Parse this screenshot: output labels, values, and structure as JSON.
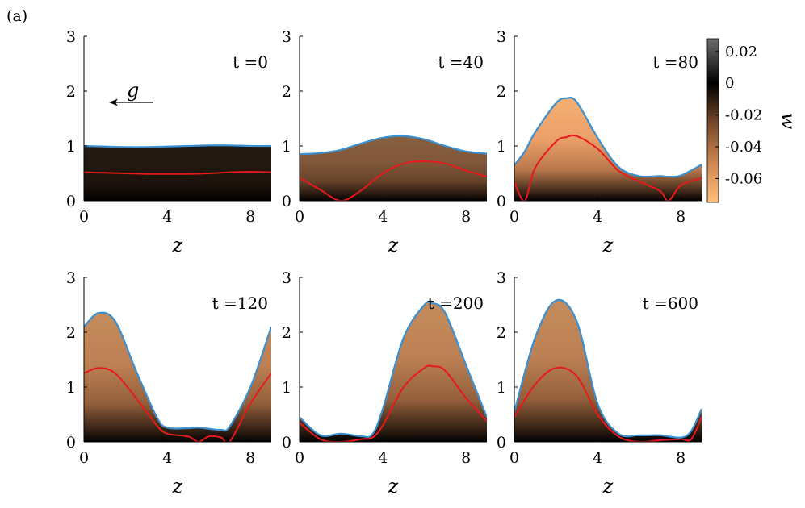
{
  "panel_label": "(a)",
  "gravity_label": "g",
  "colorbar": {
    "label": "w",
    "ticks": [
      0.02,
      0,
      -0.02,
      -0.04,
      -0.06
    ],
    "tick_labels": [
      "0.02",
      "0",
      "-0.02",
      "-0.04",
      "-0.06"
    ],
    "range": [
      -0.075,
      0.028
    ],
    "colors": {
      "positive": "#6e6e6e",
      "zero": "#000000",
      "negative": "#ffc07a"
    }
  },
  "colors": {
    "interface": "#3a8fd0",
    "inner_line": "#e8191c"
  },
  "chart_data": [
    {
      "type": "area",
      "time_label": "t =0",
      "xlabel": "z",
      "ylabel": "",
      "xlim": [
        0,
        9
      ],
      "ylim": [
        0,
        3
      ],
      "xticks": [
        0,
        4,
        8
      ],
      "yticks": [
        0,
        1,
        2,
        3
      ],
      "x": [
        0,
        1,
        2,
        3,
        4,
        5,
        6,
        7,
        8,
        9
      ],
      "series": [
        {
          "values": [
            1.0,
            0.99,
            0.98,
            0.98,
            0.99,
            1.0,
            1.01,
            1.01,
            1.0,
            1.0
          ]
        },
        {
          "values": [
            0.52,
            0.51,
            0.5,
            0.49,
            0.49,
            0.49,
            0.5,
            0.52,
            0.53,
            0.52
          ]
        }
      ],
      "fill_intensity": 0.15
    },
    {
      "type": "area",
      "time_label": "t =40",
      "xlabel": "z",
      "ylabel": "",
      "xlim": [
        0,
        9
      ],
      "ylim": [
        0,
        3
      ],
      "xticks": [
        0,
        4,
        8
      ],
      "yticks": [
        0,
        1,
        2,
        3
      ],
      "x": [
        0,
        1,
        2,
        3,
        4,
        5,
        6,
        7,
        8,
        9
      ],
      "series": [
        {
          "values": [
            0.85,
            0.87,
            0.93,
            1.05,
            1.15,
            1.18,
            1.12,
            1.0,
            0.9,
            0.86
          ]
        },
        {
          "values": [
            0.42,
            0.2,
            0.0,
            0.2,
            0.5,
            0.68,
            0.72,
            0.68,
            0.55,
            0.44
          ]
        }
      ],
      "fill_intensity": 0.55
    },
    {
      "type": "area",
      "time_label": "t =80",
      "xlabel": "z",
      "ylabel": "",
      "xlim": [
        0,
        9
      ],
      "ylim": [
        0,
        3
      ],
      "xticks": [
        0,
        4,
        8
      ],
      "yticks": [
        0,
        1,
        2,
        3
      ],
      "x": [
        0,
        0.5,
        1,
        2,
        2.5,
        3,
        4,
        5,
        6,
        7,
        7.4,
        8,
        9
      ],
      "series": [
        {
          "values": [
            0.65,
            0.9,
            1.25,
            1.78,
            1.87,
            1.8,
            1.15,
            0.62,
            0.45,
            0.45,
            0.44,
            0.46,
            0.66
          ]
        },
        {
          "values": [
            0.35,
            0.0,
            0.6,
            1.08,
            1.16,
            1.18,
            0.95,
            0.55,
            0.35,
            0.18,
            0.0,
            0.28,
            0.42
          ]
        }
      ],
      "fill_intensity": 1.0
    },
    {
      "type": "area",
      "time_label": "t =120",
      "xlabel": "z",
      "ylabel": "",
      "xlim": [
        0,
        9
      ],
      "ylim": [
        0,
        3
      ],
      "xticks": [
        0,
        4,
        8
      ],
      "yticks": [
        0,
        1,
        2,
        3
      ],
      "x": [
        0,
        0.7,
        1.5,
        2.5,
        3.5,
        4,
        5,
        5.5,
        6,
        6.6,
        7,
        8,
        9
      ],
      "series": [
        {
          "values": [
            2.1,
            2.35,
            2.2,
            1.3,
            0.45,
            0.26,
            0.25,
            0.26,
            0.24,
            0.22,
            0.28,
            1.0,
            2.1
          ]
        },
        {
          "values": [
            1.25,
            1.35,
            1.25,
            0.8,
            0.3,
            0.15,
            0.1,
            0.0,
            0.1,
            0.08,
            0.0,
            0.7,
            1.25
          ]
        }
      ],
      "fill_intensity": 0.8
    },
    {
      "type": "area",
      "time_label": "t =200",
      "xlabel": "z",
      "ylabel": "",
      "xlim": [
        0,
        9
      ],
      "ylim": [
        0,
        3
      ],
      "xticks": [
        0,
        4,
        8
      ],
      "yticks": [
        0,
        1,
        2,
        3
      ],
      "x": [
        0,
        1,
        2,
        3,
        3.5,
        4,
        5,
        6,
        6.4,
        7,
        8,
        9
      ],
      "series": [
        {
          "values": [
            0.45,
            0.12,
            0.15,
            0.1,
            0.14,
            0.6,
            1.9,
            2.5,
            2.53,
            2.35,
            1.4,
            0.45
          ]
        },
        {
          "values": [
            0.35,
            0.05,
            0.0,
            0.05,
            0.08,
            0.3,
            1.0,
            1.35,
            1.38,
            1.3,
            0.8,
            0.38
          ]
        }
      ],
      "fill_intensity": 0.8
    },
    {
      "type": "area",
      "time_label": "t =600",
      "xlabel": "z",
      "ylabel": "",
      "xlim": [
        0,
        9
      ],
      "ylim": [
        0,
        3
      ],
      "xticks": [
        0,
        4,
        8
      ],
      "yticks": [
        0,
        1,
        2,
        3
      ],
      "x": [
        0,
        1,
        2,
        3,
        4,
        5,
        6,
        7,
        8,
        8.5,
        9
      ],
      "series": [
        {
          "values": [
            0.55,
            1.9,
            2.58,
            2.2,
            0.7,
            0.15,
            0.12,
            0.12,
            0.08,
            0.2,
            0.6
          ]
        },
        {
          "values": [
            0.45,
            1.05,
            1.35,
            1.2,
            0.5,
            0.1,
            0.0,
            0.03,
            0.05,
            0.05,
            0.45
          ]
        }
      ],
      "fill_intensity": 0.8
    }
  ]
}
